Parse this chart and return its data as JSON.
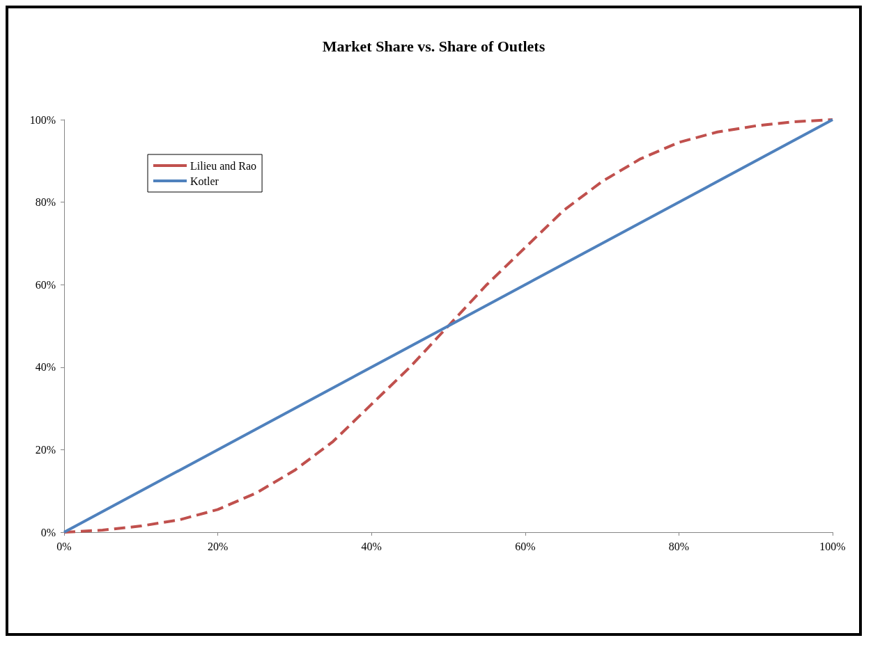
{
  "chart_data": {
    "type": "line",
    "title": "Market Share vs. Share of Outlets",
    "xlim": [
      0,
      100
    ],
    "ylim": [
      0,
      100
    ],
    "xticks": [
      {
        "value": 0,
        "label": "0%"
      },
      {
        "value": 20,
        "label": "20%"
      },
      {
        "value": 40,
        "label": "40%"
      },
      {
        "value": 60,
        "label": "60%"
      },
      {
        "value": 80,
        "label": "80%"
      },
      {
        "value": 100,
        "label": "100%"
      }
    ],
    "yticks": [
      {
        "value": 0,
        "label": "0%"
      },
      {
        "value": 20,
        "label": "20%"
      },
      {
        "value": 40,
        "label": "40%"
      },
      {
        "value": 60,
        "label": "60%"
      },
      {
        "value": 80,
        "label": "80%"
      },
      {
        "value": 100,
        "label": "100%"
      }
    ],
    "grid": false,
    "legend": "top left",
    "marker": "none",
    "series": [
      {
        "name": "Lilieu and Rao",
        "color": "#c0504d",
        "line_style": "dashed",
        "x": [
          0,
          5,
          10,
          15,
          20,
          25,
          30,
          35,
          40,
          45,
          50,
          55,
          60,
          65,
          70,
          75,
          80,
          85,
          90,
          95,
          100
        ],
        "values": [
          0,
          0.5,
          1.5,
          3,
          5.5,
          9.5,
          15,
          22,
          31,
          40,
          50,
          60,
          69,
          78,
          85,
          90.5,
          94.5,
          97,
          98.5,
          99.5,
          100
        ]
      },
      {
        "name": "Kotler",
        "color": "#4f81bd",
        "line_style": "solid",
        "x": [
          0,
          100
        ],
        "values": [
          0,
          100
        ]
      }
    ]
  }
}
